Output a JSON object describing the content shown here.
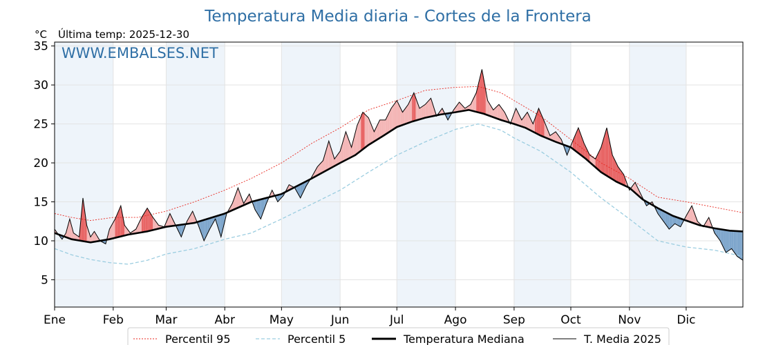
{
  "header": {
    "title": "Temperatura Media diaria - Cortes de la Frontera",
    "unit": "°C",
    "last_temp": "Última temp: 2025-12-30",
    "watermark": "WWW.EMBALSES.NET"
  },
  "colors": {
    "above_fill": "#f4b6b6",
    "above_fill_strong": "#e86565",
    "below_fill": "#7ea6cc",
    "p95": "#e8261e",
    "p5": "#9bcde0",
    "median": "#000000",
    "current": "#000000",
    "band": "#eef4fa"
  },
  "chart_data": {
    "type": "line",
    "title": "Temperatura Media diaria - Cortes de la Frontera",
    "xlabel": "",
    "ylabel": "°C",
    "ylim": [
      1.5,
      35.5
    ],
    "xlim": [
      1,
      365
    ],
    "yticks": [
      5,
      10,
      15,
      20,
      25,
      30,
      35
    ],
    "grid": true,
    "legend_position": "bottom",
    "months": [
      {
        "label": "Ene",
        "day": 1
      },
      {
        "label": "Feb",
        "day": 32
      },
      {
        "label": "Mar",
        "day": 60
      },
      {
        "label": "Abr",
        "day": 91
      },
      {
        "label": "May",
        "day": 121
      },
      {
        "label": "Jun",
        "day": 152
      },
      {
        "label": "Jul",
        "day": 182
      },
      {
        "label": "Ago",
        "day": 213
      },
      {
        "label": "Sep",
        "day": 244
      },
      {
        "label": "Oct",
        "day": 274
      },
      {
        "label": "Nov",
        "day": 305
      },
      {
        "label": "Dic",
        "day": 335
      }
    ],
    "series_points": [
      {
        "name": "Percentil 95",
        "points": [
          [
            1,
            13.5
          ],
          [
            10,
            13.0
          ],
          [
            20,
            12.6
          ],
          [
            32,
            13.0
          ],
          [
            45,
            13.0
          ],
          [
            60,
            13.8
          ],
          [
            75,
            15.0
          ],
          [
            91,
            16.5
          ],
          [
            105,
            18.0
          ],
          [
            121,
            20.0
          ],
          [
            137,
            22.5
          ],
          [
            152,
            24.5
          ],
          [
            167,
            26.8
          ],
          [
            182,
            28.0
          ],
          [
            197,
            29.3
          ],
          [
            213,
            29.7
          ],
          [
            225,
            29.8
          ],
          [
            237,
            29.0
          ],
          [
            244,
            28.0
          ],
          [
            258,
            26.0
          ],
          [
            274,
            23.0
          ],
          [
            290,
            20.0
          ],
          [
            305,
            18.0
          ],
          [
            320,
            15.6
          ],
          [
            335,
            15.0
          ],
          [
            350,
            14.3
          ],
          [
            365,
            13.6
          ]
        ]
      },
      {
        "name": "Percentil 5",
        "points": [
          [
            1,
            9.0
          ],
          [
            10,
            8.2
          ],
          [
            20,
            7.6
          ],
          [
            30,
            7.2
          ],
          [
            40,
            7.0
          ],
          [
            50,
            7.5
          ],
          [
            60,
            8.3
          ],
          [
            75,
            9.0
          ],
          [
            91,
            10.2
          ],
          [
            105,
            11.0
          ],
          [
            121,
            12.8
          ],
          [
            137,
            14.7
          ],
          [
            152,
            16.5
          ],
          [
            167,
            18.8
          ],
          [
            182,
            21.0
          ],
          [
            197,
            22.7
          ],
          [
            213,
            24.3
          ],
          [
            225,
            25.0
          ],
          [
            237,
            24.2
          ],
          [
            244,
            23.2
          ],
          [
            258,
            21.5
          ],
          [
            274,
            18.8
          ],
          [
            290,
            15.5
          ],
          [
            305,
            12.8
          ],
          [
            320,
            10.0
          ],
          [
            335,
            9.2
          ],
          [
            350,
            8.8
          ],
          [
            365,
            8.0
          ]
        ]
      },
      {
        "name": "Temperatura Mediana",
        "points": [
          [
            1,
            11.0
          ],
          [
            10,
            10.2
          ],
          [
            20,
            9.8
          ],
          [
            30,
            10.2
          ],
          [
            40,
            10.8
          ],
          [
            50,
            11.2
          ],
          [
            60,
            11.8
          ],
          [
            75,
            12.3
          ],
          [
            91,
            13.5
          ],
          [
            105,
            15.0
          ],
          [
            121,
            16.0
          ],
          [
            137,
            18.0
          ],
          [
            152,
            20.0
          ],
          [
            160,
            21.0
          ],
          [
            167,
            22.3
          ],
          [
            175,
            23.5
          ],
          [
            182,
            24.6
          ],
          [
            190,
            25.3
          ],
          [
            197,
            25.8
          ],
          [
            205,
            26.2
          ],
          [
            213,
            26.5
          ],
          [
            220,
            26.8
          ],
          [
            228,
            26.3
          ],
          [
            237,
            25.5
          ],
          [
            244,
            25.0
          ],
          [
            250,
            24.5
          ],
          [
            258,
            23.5
          ],
          [
            266,
            22.7
          ],
          [
            274,
            22.0
          ],
          [
            282,
            20.5
          ],
          [
            290,
            18.8
          ],
          [
            298,
            17.6
          ],
          [
            305,
            16.8
          ],
          [
            312,
            15.3
          ],
          [
            320,
            14.2
          ],
          [
            328,
            13.2
          ],
          [
            335,
            12.6
          ],
          [
            342,
            12.0
          ],
          [
            350,
            11.6
          ],
          [
            358,
            11.3
          ],
          [
            365,
            11.2
          ]
        ]
      },
      {
        "name": "T. Media 2025",
        "points": [
          [
            1,
            11.5
          ],
          [
            3,
            10.8
          ],
          [
            5,
            10.2
          ],
          [
            7,
            11.0
          ],
          [
            9,
            12.8
          ],
          [
            11,
            11.0
          ],
          [
            14,
            10.5
          ],
          [
            16,
            15.5
          ],
          [
            18,
            12.0
          ],
          [
            20,
            10.5
          ],
          [
            22,
            11.2
          ],
          [
            25,
            10.0
          ],
          [
            28,
            9.6
          ],
          [
            30,
            11.5
          ],
          [
            33,
            12.8
          ],
          [
            36,
            14.5
          ],
          [
            38,
            12.0
          ],
          [
            41,
            11.0
          ],
          [
            44,
            11.5
          ],
          [
            47,
            13.0
          ],
          [
            50,
            14.2
          ],
          [
            53,
            13.0
          ],
          [
            56,
            12.0
          ],
          [
            59,
            11.8
          ],
          [
            62,
            13.5
          ],
          [
            65,
            12.0
          ],
          [
            68,
            10.5
          ],
          [
            71,
            12.5
          ],
          [
            74,
            13.8
          ],
          [
            77,
            12.0
          ],
          [
            80,
            10.0
          ],
          [
            83,
            11.5
          ],
          [
            86,
            12.8
          ],
          [
            89,
            10.5
          ],
          [
            92,
            13.5
          ],
          [
            95,
            14.8
          ],
          [
            98,
            16.8
          ],
          [
            101,
            14.8
          ],
          [
            104,
            16.0
          ],
          [
            107,
            14.0
          ],
          [
            110,
            12.8
          ],
          [
            113,
            14.8
          ],
          [
            116,
            16.5
          ],
          [
            119,
            15.0
          ],
          [
            122,
            15.8
          ],
          [
            125,
            17.2
          ],
          [
            128,
            16.8
          ],
          [
            131,
            15.5
          ],
          [
            134,
            17.0
          ],
          [
            137,
            18.2
          ],
          [
            140,
            19.5
          ],
          [
            143,
            20.3
          ],
          [
            146,
            22.8
          ],
          [
            149,
            20.5
          ],
          [
            152,
            21.5
          ],
          [
            155,
            24.0
          ],
          [
            158,
            22.0
          ],
          [
            161,
            24.8
          ],
          [
            164,
            26.5
          ],
          [
            167,
            25.8
          ],
          [
            170,
            24.0
          ],
          [
            173,
            25.5
          ],
          [
            176,
            25.5
          ],
          [
            179,
            27.0
          ],
          [
            182,
            28.0
          ],
          [
            185,
            26.5
          ],
          [
            188,
            27.5
          ],
          [
            191,
            29.0
          ],
          [
            194,
            27.0
          ],
          [
            197,
            27.5
          ],
          [
            200,
            28.3
          ],
          [
            203,
            26.0
          ],
          [
            206,
            27.0
          ],
          [
            209,
            25.5
          ],
          [
            212,
            26.8
          ],
          [
            215,
            27.8
          ],
          [
            218,
            27.0
          ],
          [
            221,
            27.5
          ],
          [
            224,
            29.0
          ],
          [
            227,
            32.0
          ],
          [
            230,
            28.0
          ],
          [
            233,
            26.8
          ],
          [
            236,
            27.5
          ],
          [
            239,
            26.5
          ],
          [
            242,
            25.0
          ],
          [
            245,
            27.0
          ],
          [
            248,
            25.5
          ],
          [
            251,
            26.5
          ],
          [
            254,
            25.0
          ],
          [
            257,
            27.0
          ],
          [
            260,
            25.3
          ],
          [
            263,
            23.5
          ],
          [
            266,
            24.0
          ],
          [
            269,
            23.0
          ],
          [
            272,
            21.0
          ],
          [
            275,
            22.8
          ],
          [
            278,
            24.5
          ],
          [
            281,
            22.5
          ],
          [
            284,
            21.0
          ],
          [
            287,
            20.5
          ],
          [
            290,
            22.0
          ],
          [
            293,
            24.5
          ],
          [
            296,
            21.0
          ],
          [
            299,
            19.5
          ],
          [
            302,
            18.5
          ],
          [
            305,
            16.5
          ],
          [
            308,
            17.5
          ],
          [
            311,
            16.0
          ],
          [
            314,
            14.5
          ],
          [
            317,
            15.0
          ],
          [
            320,
            13.5
          ],
          [
            323,
            12.5
          ],
          [
            326,
            11.5
          ],
          [
            329,
            12.2
          ],
          [
            332,
            11.8
          ],
          [
            335,
            13.2
          ],
          [
            338,
            14.5
          ],
          [
            341,
            12.5
          ],
          [
            344,
            11.8
          ],
          [
            347,
            13.0
          ],
          [
            350,
            11.0
          ],
          [
            353,
            10.0
          ],
          [
            356,
            8.5
          ],
          [
            359,
            9.0
          ],
          [
            362,
            8.0
          ],
          [
            365,
            7.5
          ]
        ]
      }
    ]
  },
  "legend": {
    "p95": "Percentil 95",
    "p5": "Percentil 5",
    "median": "Temperatura Mediana",
    "current": "T. Media 2025"
  }
}
